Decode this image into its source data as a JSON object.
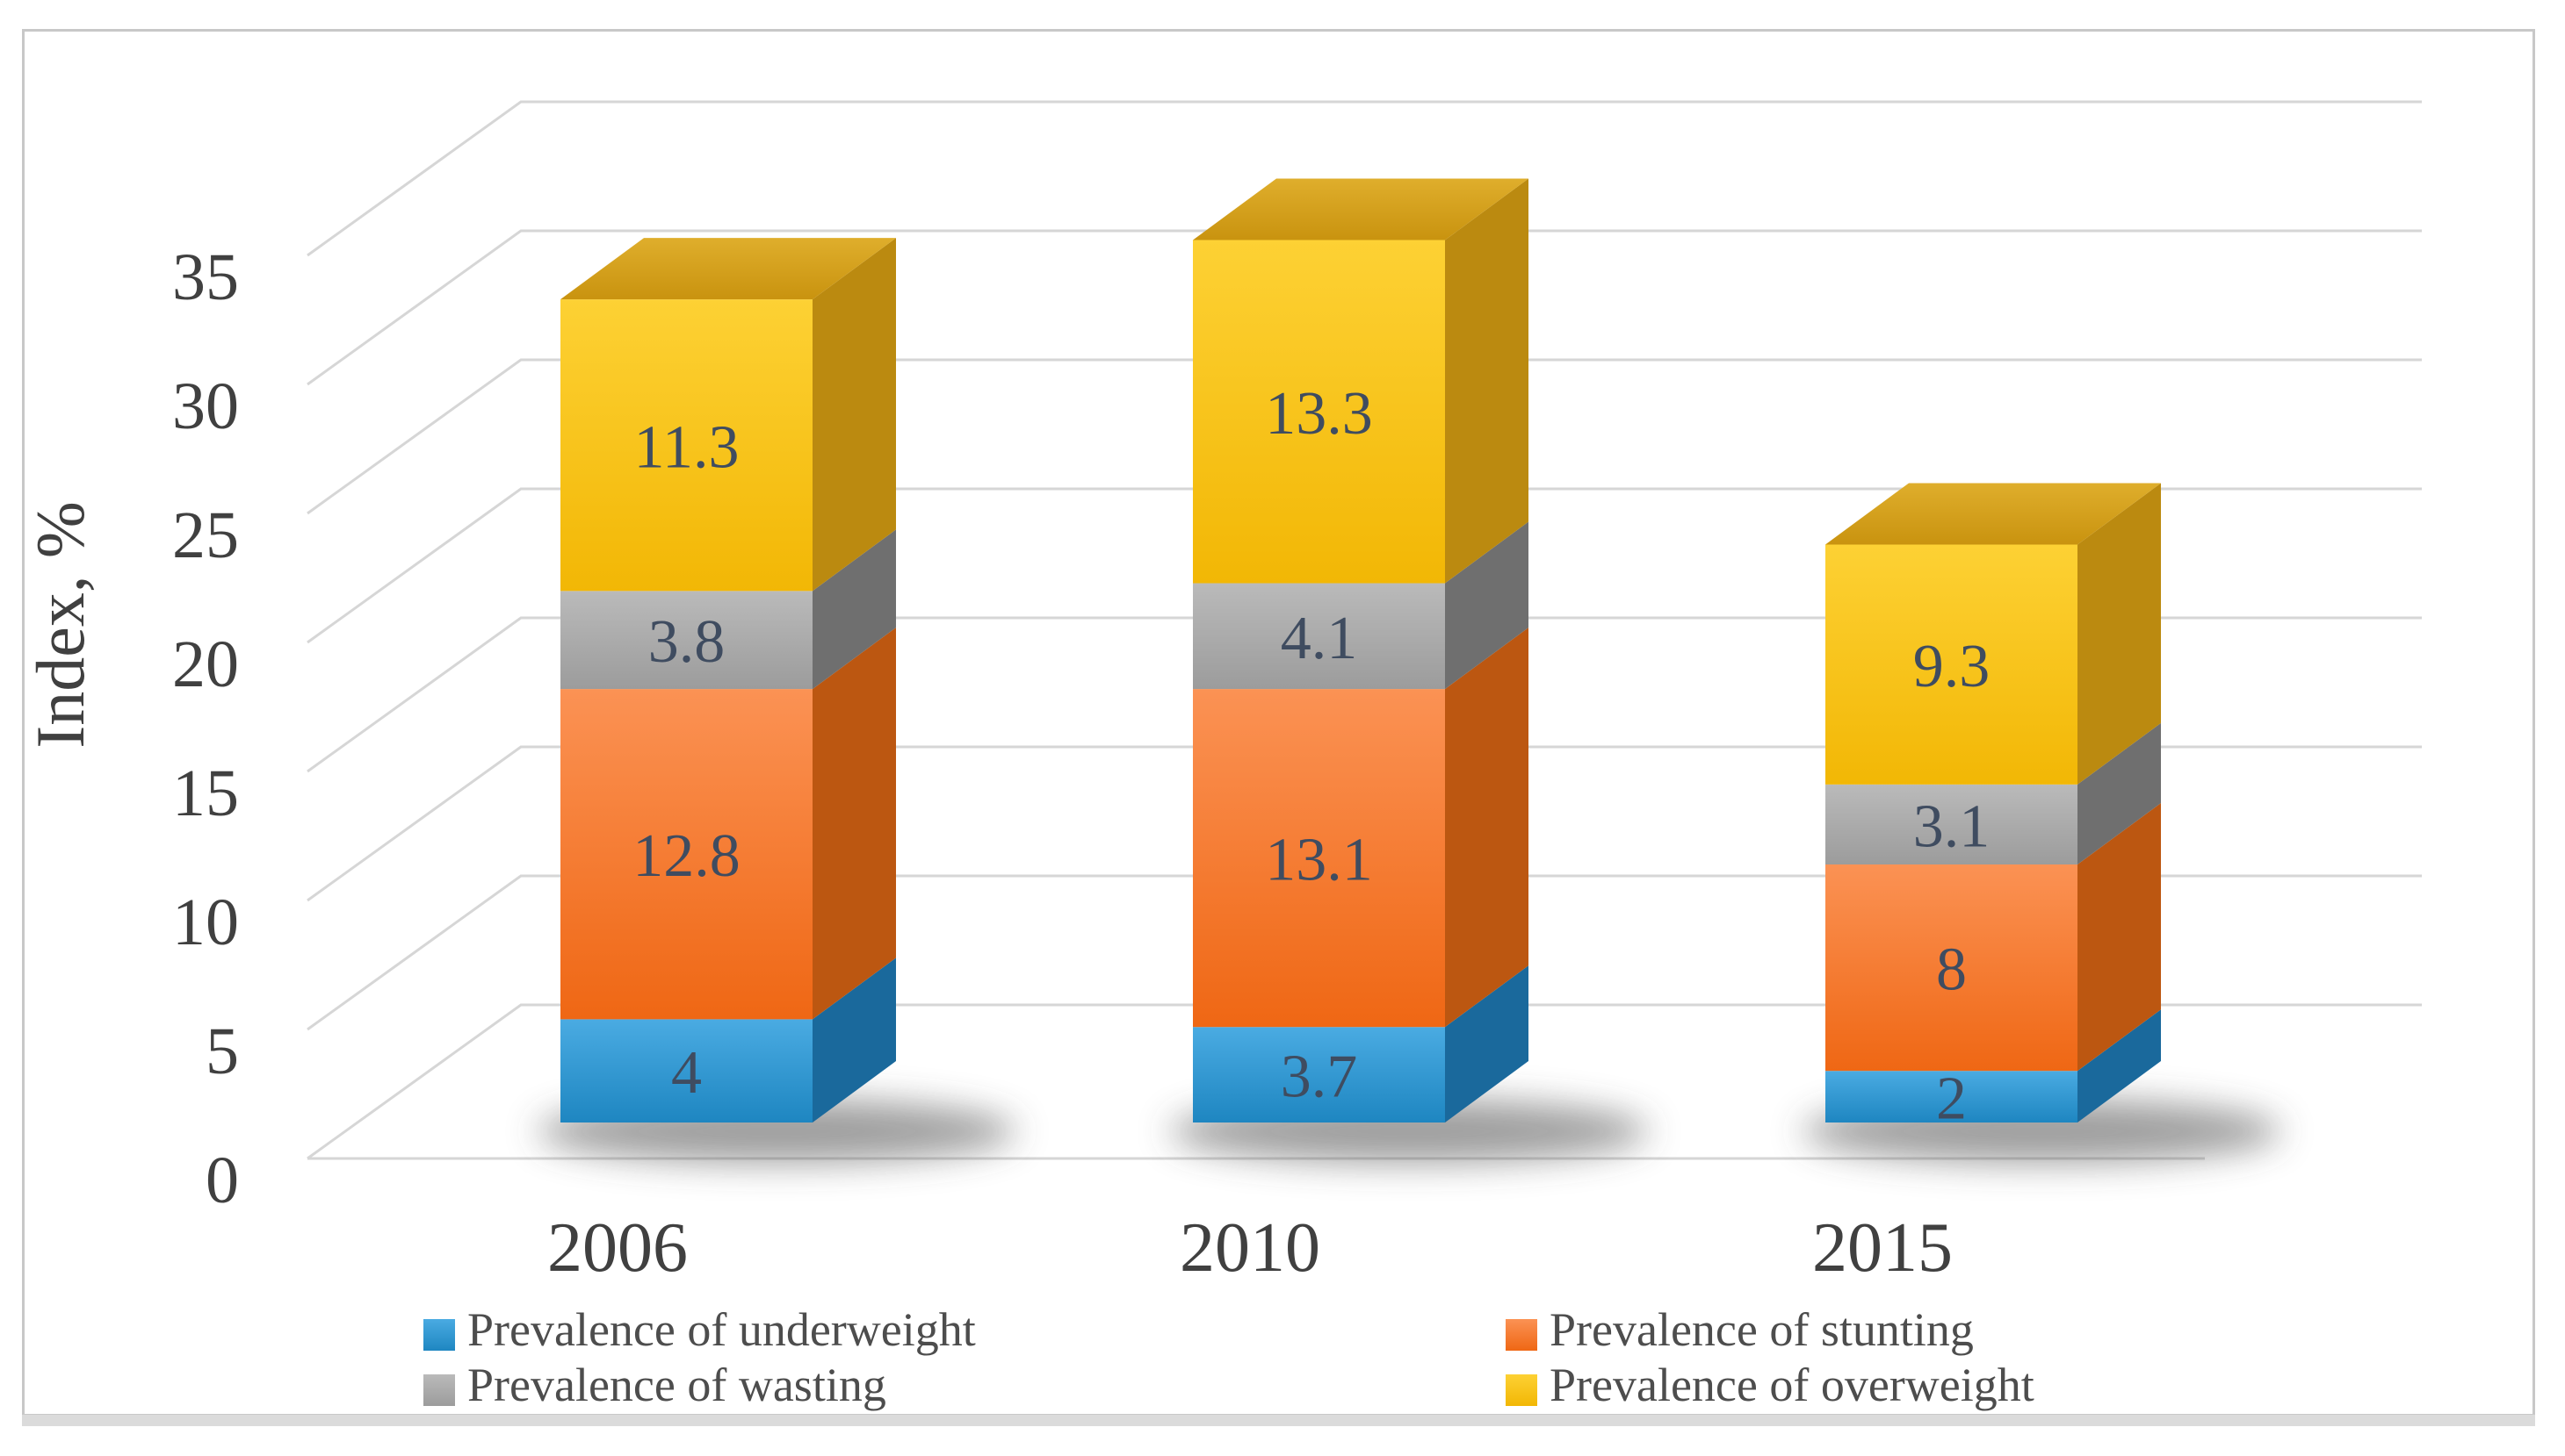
{
  "figure": {
    "y_axis_title": "Index, %"
  },
  "chart_data": {
    "type": "bar",
    "subtype": "stacked-3d-column",
    "title": "",
    "xlabel": "",
    "ylabel": "Index, %",
    "ylim": [
      0,
      35
    ],
    "yticks": [
      0,
      5,
      10,
      15,
      20,
      25,
      30,
      35
    ],
    "grid": true,
    "legend_position": "bottom-two-columns",
    "categories": [
      "2006",
      "2010",
      "2015"
    ],
    "series": [
      {
        "name": "Prevalence of underweight",
        "color": "#2E96D3",
        "values": [
          4,
          3.7,
          2
        ]
      },
      {
        "name": "Prevalence of stunting",
        "color": "#F4701B",
        "values": [
          12.8,
          13.1,
          8
        ]
      },
      {
        "name": "Prevalence of wasting",
        "color": "#A6A6A6",
        "values": [
          3.8,
          4.1,
          3.1
        ]
      },
      {
        "name": "Prevalence of overweight",
        "color": "#F7BE06",
        "values": [
          11.3,
          13.3,
          9.3
        ]
      }
    ],
    "data_labels": [
      "4",
      "12.8",
      "3.8",
      "11.3",
      "3.7",
      "13.1",
      "4.1",
      "13.3",
      "2",
      "8",
      "3.1",
      "9.3"
    ],
    "gridline_color": "#D6D6D6",
    "frame_border_color": "#C8C8C8",
    "bottom_strip_color": "#DBDBDB",
    "tick_label_color": "#404040",
    "data_label_color": "#3F4C60",
    "legend_text_color": "#4D4D4D"
  }
}
